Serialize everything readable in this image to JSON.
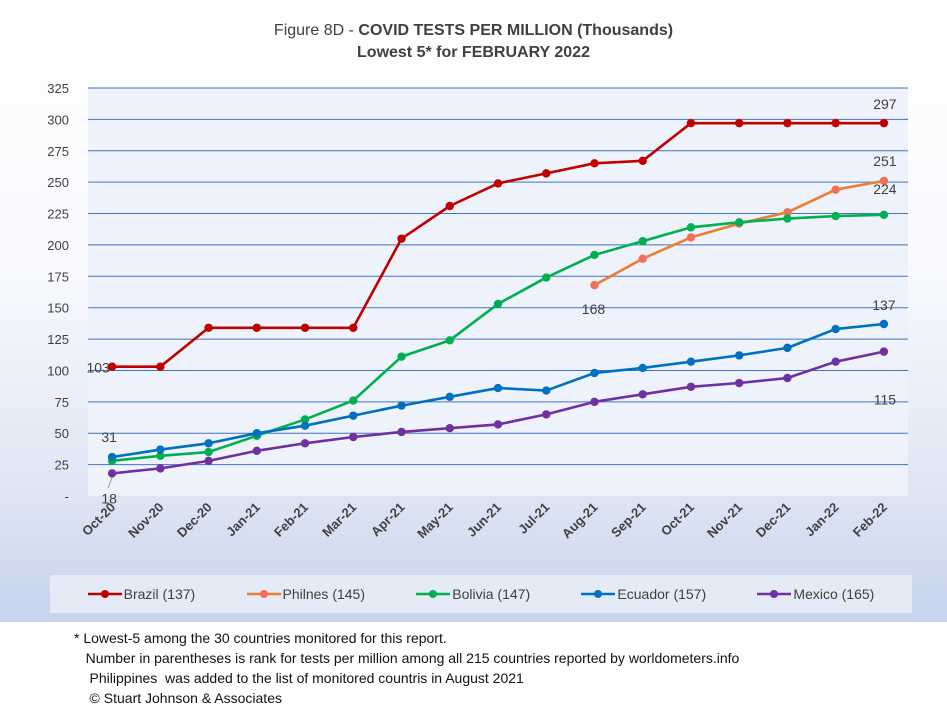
{
  "title": {
    "prefix": "Figure 8D - ",
    "main": "COVID TESTS PER MILLION (Thousands)",
    "subtitle": "Lowest 5* for FEBRUARY 2022"
  },
  "chart_data": {
    "type": "line",
    "title": "Figure 8D - COVID TESTS PER MILLION (Thousands)",
    "subtitle": "Lowest 5* for FEBRUARY 2022",
    "categories": [
      "Oct-20",
      "Nov-20",
      "Dec-20",
      "Jan-21",
      "Feb-21",
      "Mar-21",
      "Apr-21",
      "May-21",
      "Jun-21",
      "Jul-21",
      "Aug-21",
      "Sep-21",
      "Oct-21",
      "Nov-21",
      "Dec-21",
      "Jan-22",
      "Feb-22"
    ],
    "ylim": [
      0,
      325
    ],
    "yticks": [
      0,
      25,
      50,
      75,
      100,
      125,
      150,
      175,
      200,
      225,
      250,
      275,
      300,
      325
    ],
    "ytick_labels": [
      "-",
      "25",
      "50",
      "75",
      "100",
      "125",
      "150",
      "175",
      "200",
      "225",
      "250",
      "275",
      "300",
      "325"
    ],
    "grid": true,
    "legend_position": "bottom",
    "series": [
      {
        "name": "Brazil (137)",
        "color": "#c00000",
        "values": [
          103,
          103,
          134,
          134,
          134,
          134,
          205,
          231,
          249,
          257,
          265,
          267,
          297,
          297,
          297,
          297,
          297
        ]
      },
      {
        "name": "Philnes (145)",
        "color": "#ed7d31",
        "marker_color": "#f26d5b",
        "values": [
          null,
          null,
          null,
          null,
          null,
          null,
          null,
          null,
          null,
          null,
          168,
          189,
          206,
          217,
          226,
          244,
          251
        ]
      },
      {
        "name": "Bolivia (147)",
        "color": "#00b050",
        "values": [
          28,
          32,
          35,
          48,
          61,
          76,
          111,
          124,
          153,
          174,
          192,
          203,
          214,
          218,
          221,
          223,
          224
        ]
      },
      {
        "name": "Ecuador (157)",
        "color": "#0070c0",
        "values": [
          31,
          37,
          42,
          50,
          56,
          64,
          72,
          79,
          86,
          84,
          98,
          102,
          107,
          112,
          118,
          133,
          137
        ]
      },
      {
        "name": "Mexico (165)",
        "color": "#7030a0",
        "values": [
          18,
          22,
          28,
          36,
          42,
          47,
          51,
          54,
          57,
          65,
          75,
          81,
          87,
          90,
          94,
          107,
          115
        ]
      }
    ],
    "annotations": [
      {
        "text": "103",
        "series": 0,
        "index": 0
      },
      {
        "text": "297",
        "series": 0,
        "index": 16
      },
      {
        "text": "168",
        "series": 1,
        "index": 10
      },
      {
        "text": "251",
        "series": 1,
        "index": 16
      },
      {
        "text": "224",
        "series": 2,
        "index": 16
      },
      {
        "text": "31",
        "series": 3,
        "index": 0
      },
      {
        "text": "137",
        "series": 3,
        "index": 16
      },
      {
        "text": "18",
        "series": 4,
        "index": 0
      },
      {
        "text": "115",
        "series": 4,
        "index": 16
      }
    ]
  },
  "footnotes": [
    "* Lowest-5 among the 30 countries monitored for this report.",
    "   Number in parentheses is rank for tests per million among all 215 countries reported by worldometers.info",
    "    Philippines  was added to the list of monitored countris in August 2021",
    "    © Stuart Johnson & Associates"
  ]
}
